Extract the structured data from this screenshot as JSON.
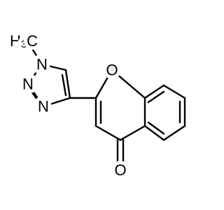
{
  "molecule": {
    "methyl": {
      "main": "H",
      "sub": "3",
      "tail": "C"
    },
    "n1": "N",
    "n2": "N",
    "n3": "N",
    "ring_oxygen": "O",
    "carbonyl_oxygen": "O"
  }
}
